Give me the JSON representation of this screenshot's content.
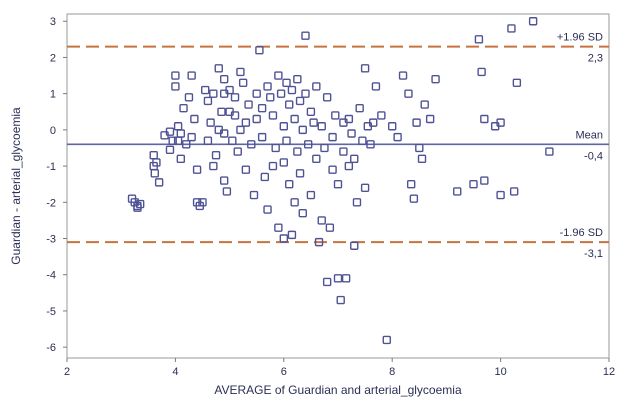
{
  "chart_data": {
    "type": "scatter",
    "title": "",
    "xlabel": "AVERAGE of Guardian and arterial_glycoemia",
    "ylabel": "Guardian - arterial_glycoemia",
    "xlim": [
      2,
      12
    ],
    "ylim": [
      -6.3,
      3.2
    ],
    "xticks": [
      "2",
      "4",
      "6",
      "8",
      "10",
      "12"
    ],
    "yticks": [
      "3",
      "2",
      "1",
      "0",
      "-1",
      "-2",
      "-3",
      "-4",
      "-5",
      "-6"
    ],
    "grid": false,
    "reference_lines": [
      {
        "name": "+1.96 SD",
        "value_label": "2,3",
        "y": 2.3,
        "style": "dashed"
      },
      {
        "name": "Mean",
        "value_label": "-0,4",
        "y": -0.4,
        "style": "solid"
      },
      {
        "name": "-1.96 SD",
        "value_label": "-3,1",
        "y": -3.1,
        "style": "dashed"
      }
    ],
    "series": [
      {
        "marker": "square",
        "points": [
          [
            3.2,
            -1.9
          ],
          [
            3.25,
            -2.0
          ],
          [
            3.3,
            -2.1
          ],
          [
            3.35,
            -2.05
          ],
          [
            3.3,
            -2.15
          ],
          [
            3.6,
            -0.7
          ],
          [
            3.6,
            -1.0
          ],
          [
            3.62,
            -1.2
          ],
          [
            3.65,
            -0.9
          ],
          [
            3.7,
            -1.45
          ],
          [
            3.8,
            -0.15
          ],
          [
            3.9,
            -0.05
          ],
          [
            3.95,
            -0.3
          ],
          [
            3.9,
            -0.55
          ],
          [
            4.0,
            1.5
          ],
          [
            4.0,
            1.2
          ],
          [
            4.05,
            0.1
          ],
          [
            4.05,
            -0.3
          ],
          [
            4.1,
            -0.8
          ],
          [
            4.1,
            -0.1
          ],
          [
            4.15,
            0.6
          ],
          [
            4.2,
            -0.4
          ],
          [
            4.25,
            0.9
          ],
          [
            4.3,
            1.5
          ],
          [
            4.3,
            -0.2
          ],
          [
            4.35,
            0.3
          ],
          [
            4.4,
            -1.1
          ],
          [
            4.4,
            -2.0
          ],
          [
            4.45,
            -2.1
          ],
          [
            4.5,
            -2.0
          ],
          [
            4.55,
            1.1
          ],
          [
            4.6,
            0.8
          ],
          [
            4.6,
            -0.3
          ],
          [
            4.65,
            0.2
          ],
          [
            4.7,
            1.0
          ],
          [
            4.7,
            -1.0
          ],
          [
            4.75,
            -0.7
          ],
          [
            4.8,
            1.7
          ],
          [
            4.8,
            0.0
          ],
          [
            4.85,
            0.5
          ],
          [
            4.9,
            1.4
          ],
          [
            4.9,
            1.0
          ],
          [
            4.9,
            -0.1
          ],
          [
            4.9,
            -1.4
          ],
          [
            4.95,
            -1.7
          ],
          [
            5.0,
            1.1
          ],
          [
            5.0,
            0.5
          ],
          [
            5.05,
            -0.3
          ],
          [
            5.1,
            0.4
          ],
          [
            5.1,
            0.9
          ],
          [
            5.15,
            -0.6
          ],
          [
            5.2,
            1.6
          ],
          [
            5.2,
            0.0
          ],
          [
            5.25,
            1.3
          ],
          [
            5.3,
            -1.1
          ],
          [
            5.3,
            0.2
          ],
          [
            5.35,
            0.7
          ],
          [
            5.4,
            -0.4
          ],
          [
            5.45,
            -1.8
          ],
          [
            5.5,
            1.0
          ],
          [
            5.5,
            0.3
          ],
          [
            5.55,
            2.2
          ],
          [
            5.6,
            -0.2
          ],
          [
            5.6,
            0.6
          ],
          [
            5.65,
            -1.3
          ],
          [
            5.7,
            1.2
          ],
          [
            5.7,
            -2.2
          ],
          [
            5.75,
            0.9
          ],
          [
            5.8,
            -1.0
          ],
          [
            5.8,
            0.4
          ],
          [
            5.85,
            -0.5
          ],
          [
            5.9,
            1.5
          ],
          [
            5.9,
            -2.7
          ],
          [
            5.95,
            1.0
          ],
          [
            6.0,
            0.1
          ],
          [
            6.0,
            -0.9
          ],
          [
            6.0,
            -3.0
          ],
          [
            6.05,
            1.3
          ],
          [
            6.05,
            -0.3
          ],
          [
            6.1,
            0.7
          ],
          [
            6.1,
            -1.5
          ],
          [
            6.15,
            1.1
          ],
          [
            6.15,
            -2.9
          ],
          [
            6.2,
            0.3
          ],
          [
            6.2,
            -2.0
          ],
          [
            6.25,
            1.4
          ],
          [
            6.25,
            -0.6
          ],
          [
            6.3,
            0.8
          ],
          [
            6.3,
            -1.2
          ],
          [
            6.35,
            0.0
          ],
          [
            6.35,
            -2.3
          ],
          [
            6.4,
            2.6
          ],
          [
            6.4,
            1.0
          ],
          [
            6.45,
            -0.4
          ],
          [
            6.5,
            0.5
          ],
          [
            6.5,
            -1.8
          ],
          [
            6.55,
            0.2
          ],
          [
            6.6,
            -0.8
          ],
          [
            6.6,
            1.2
          ],
          [
            6.65,
            -3.1
          ],
          [
            6.7,
            -2.5
          ],
          [
            6.7,
            0.1
          ],
          [
            6.75,
            -0.5
          ],
          [
            6.8,
            -4.2
          ],
          [
            6.8,
            0.9
          ],
          [
            6.85,
            -2.7
          ],
          [
            6.9,
            -1.1
          ],
          [
            6.9,
            -0.2
          ],
          [
            6.95,
            0.4
          ],
          [
            7.0,
            -1.5
          ],
          [
            7.0,
            -4.1
          ],
          [
            7.05,
            -4.7
          ],
          [
            7.1,
            0.2
          ],
          [
            7.1,
            -0.6
          ],
          [
            7.15,
            -4.1
          ],
          [
            7.2,
            -1.0
          ],
          [
            7.2,
            0.3
          ],
          [
            7.25,
            -0.1
          ],
          [
            7.3,
            -3.2
          ],
          [
            7.3,
            -0.8
          ],
          [
            7.35,
            -2.0
          ],
          [
            7.4,
            0.6
          ],
          [
            7.45,
            -0.3
          ],
          [
            7.5,
            1.7
          ],
          [
            7.5,
            -1.6
          ],
          [
            7.55,
            0.1
          ],
          [
            7.6,
            -0.4
          ],
          [
            7.65,
            0.2
          ],
          [
            7.7,
            1.2
          ],
          [
            7.8,
            0.4
          ],
          [
            7.9,
            -5.8
          ],
          [
            8.0,
            0.1
          ],
          [
            8.1,
            -0.2
          ],
          [
            8.2,
            1.5
          ],
          [
            8.3,
            1.0
          ],
          [
            8.35,
            -1.5
          ],
          [
            8.4,
            -1.9
          ],
          [
            8.45,
            0.2
          ],
          [
            8.5,
            -0.5
          ],
          [
            8.55,
            -0.8
          ],
          [
            8.6,
            0.7
          ],
          [
            8.7,
            0.3
          ],
          [
            8.8,
            1.4
          ],
          [
            9.2,
            -1.7
          ],
          [
            9.5,
            -1.5
          ],
          [
            9.6,
            2.5
          ],
          [
            9.65,
            1.6
          ],
          [
            9.7,
            -1.4
          ],
          [
            9.7,
            0.3
          ],
          [
            9.9,
            0.1
          ],
          [
            10.0,
            0.2
          ],
          [
            10.0,
            -1.8
          ],
          [
            10.2,
            2.8
          ],
          [
            10.25,
            -1.7
          ],
          [
            10.3,
            1.3
          ],
          [
            10.6,
            3.0
          ],
          [
            10.9,
            -0.6
          ]
        ]
      }
    ]
  }
}
